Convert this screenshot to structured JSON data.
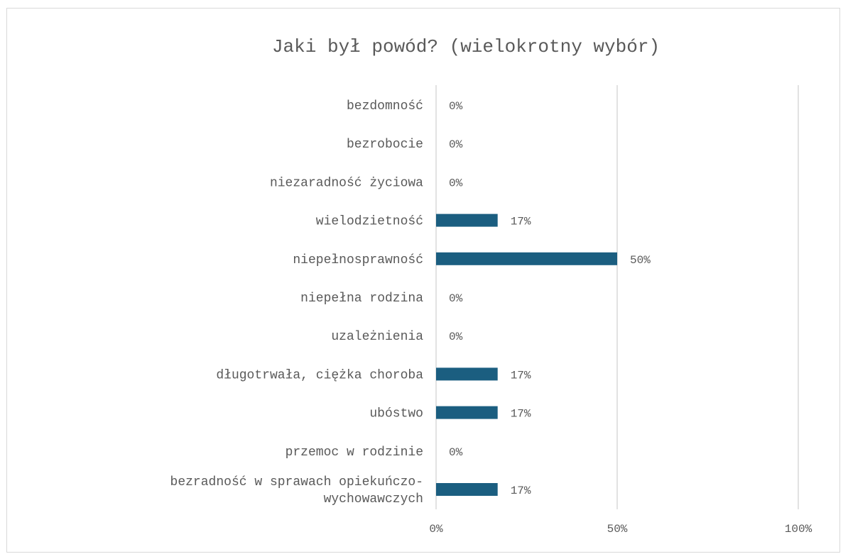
{
  "chart_data": {
    "type": "bar",
    "orientation": "horizontal",
    "title": "Jaki był powód? (wielokrotny wybór)",
    "categories": [
      "bezdomność",
      "bezrobocie",
      "niezaradność życiowa",
      "wielodzietność",
      "niepełnosprawność",
      "niepełna rodzina",
      "uzależnienia",
      "długotrwała, ciężka choroba",
      "ubóstwo",
      "przemoc w rodzinie",
      "bezradność w sprawach opiekuńczo-wychowawczych"
    ],
    "values": [
      0,
      0,
      0,
      17,
      50,
      0,
      0,
      17,
      17,
      0,
      17
    ],
    "value_labels": [
      "0%",
      "0%",
      "0%",
      "17%",
      "50%",
      "0%",
      "0%",
      "17%",
      "17%",
      "0%",
      "17%"
    ],
    "xlim": [
      0,
      100
    ],
    "x_ticks": [
      0,
      50,
      100
    ],
    "x_tick_labels": [
      "0%",
      "50%",
      "100%"
    ],
    "grid": true,
    "bar_color": "#1b5e80",
    "grid_color": "#d9d9d9"
  }
}
